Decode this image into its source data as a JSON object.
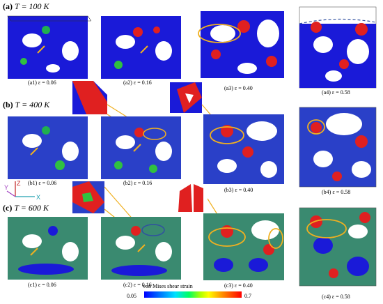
{
  "rows": [
    {
      "tag": "(a)",
      "temp": "T = 100 K"
    },
    {
      "tag": "(b)",
      "temp": "T = 400 K"
    },
    {
      "tag": "(c)",
      "temp": "T = 600 K"
    }
  ],
  "captions": [
    [
      "(a1) ε = 0.06",
      "(a2) ε = 0.16",
      "(a3) ε = 0.40",
      "(a4) ε = 0.58"
    ],
    [
      "(b1) ε = 0.06",
      "(b2) ε = 0.16",
      "(b3) ε = 0.40",
      "(b4) ε = 0.58"
    ],
    [
      "(c1) ε = 0.06",
      "(c2) ε = 0.16",
      "(c3) ε = 0.40",
      "(c4) ε = 0.58"
    ]
  ],
  "axes": {
    "x": "X",
    "y": "Y",
    "z": "Z"
  },
  "colorbar": {
    "title": "von Mises shear strain",
    "min": "0.05",
    "max": "0.7"
  },
  "colors": {
    "low": "#0000ff",
    "mid": "#00ff60",
    "high": "#ff0000",
    "highlight": "#f0b020"
  }
}
